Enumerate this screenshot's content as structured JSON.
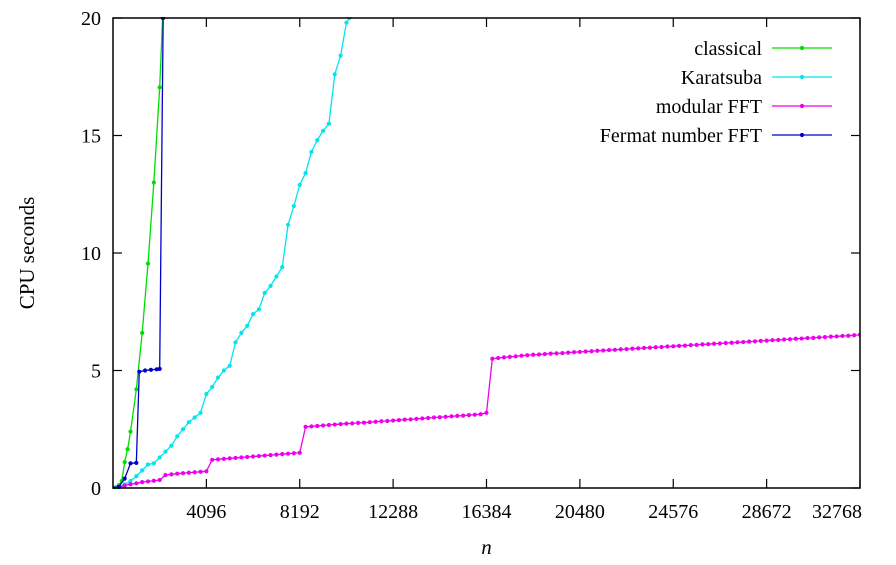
{
  "chart_data": {
    "type": "line",
    "title": "",
    "xlabel": "n",
    "ylabel": "CPU seconds",
    "xlim": [
      0,
      32768
    ],
    "ylim": [
      0,
      20
    ],
    "x_ticks": [
      4096,
      8192,
      12288,
      16384,
      20480,
      24576,
      28672,
      32768
    ],
    "x_tick_labels": [
      "4096",
      "8192",
      "12288",
      "16384",
      "20480",
      "24576",
      "28672",
      "32768"
    ],
    "y_ticks": [
      0,
      5,
      10,
      15,
      20
    ],
    "y_tick_labels": [
      "0",
      "5",
      "10",
      "15",
      "20"
    ],
    "grid": false,
    "legend_position": "top-right",
    "series": [
      {
        "name": "classical",
        "color": "#00dd00",
        "points": [
          [
            0,
            0
          ],
          [
            128,
            0.03
          ],
          [
            256,
            0.12
          ],
          [
            384,
            0.3
          ],
          [
            512,
            1.1
          ],
          [
            640,
            1.65
          ],
          [
            768,
            2.4
          ],
          [
            1024,
            4.2
          ],
          [
            1280,
            6.6
          ],
          [
            1536,
            9.55
          ],
          [
            1792,
            13.0
          ],
          [
            2048,
            17.05
          ],
          [
            2176,
            20.0
          ]
        ]
      },
      {
        "name": "Karatsuba",
        "color": "#00e5ee",
        "points": [
          [
            0,
            0
          ],
          [
            256,
            0.05
          ],
          [
            512,
            0.15
          ],
          [
            768,
            0.3
          ],
          [
            1024,
            0.5
          ],
          [
            1280,
            0.75
          ],
          [
            1536,
            1.0
          ],
          [
            1792,
            1.05
          ],
          [
            2048,
            1.3
          ],
          [
            2304,
            1.55
          ],
          [
            2560,
            1.8
          ],
          [
            2816,
            2.2
          ],
          [
            3072,
            2.5
          ],
          [
            3328,
            2.8
          ],
          [
            3584,
            3.0
          ],
          [
            3840,
            3.2
          ],
          [
            4096,
            4.0
          ],
          [
            4352,
            4.3
          ],
          [
            4608,
            4.7
          ],
          [
            4864,
            5.0
          ],
          [
            5120,
            5.2
          ],
          [
            5376,
            6.2
          ],
          [
            5632,
            6.6
          ],
          [
            5888,
            6.9
          ],
          [
            6144,
            7.4
          ],
          [
            6400,
            7.6
          ],
          [
            6656,
            8.3
          ],
          [
            6912,
            8.6
          ],
          [
            7168,
            9.0
          ],
          [
            7424,
            9.4
          ],
          [
            7680,
            11.2
          ],
          [
            7936,
            12.0
          ],
          [
            8192,
            12.9
          ],
          [
            8448,
            13.4
          ],
          [
            8704,
            14.3
          ],
          [
            8960,
            14.8
          ],
          [
            9216,
            15.2
          ],
          [
            9472,
            15.5
          ],
          [
            9728,
            17.6
          ],
          [
            9984,
            18.4
          ],
          [
            10240,
            19.8
          ],
          [
            10368,
            20.0
          ]
        ]
      },
      {
        "name": "modular FFT",
        "color": "#ee00ee",
        "points": [
          [
            0,
            0
          ],
          [
            256,
            0.04
          ],
          [
            512,
            0.1
          ],
          [
            768,
            0.16
          ],
          [
            1024,
            0.2
          ],
          [
            1280,
            0.25
          ],
          [
            1536,
            0.28
          ],
          [
            1792,
            0.31
          ],
          [
            2048,
            0.34
          ],
          [
            2304,
            0.55
          ],
          [
            2560,
            0.58
          ],
          [
            2816,
            0.61
          ],
          [
            3072,
            0.63
          ],
          [
            3328,
            0.65
          ],
          [
            3584,
            0.67
          ],
          [
            3840,
            0.69
          ],
          [
            4096,
            0.71
          ],
          [
            4352,
            1.2
          ],
          [
            4608,
            1.22
          ],
          [
            4864,
            1.24
          ],
          [
            5120,
            1.26
          ],
          [
            5376,
            1.28
          ],
          [
            5632,
            1.3
          ],
          [
            5888,
            1.32
          ],
          [
            6144,
            1.34
          ],
          [
            6400,
            1.36
          ],
          [
            6656,
            1.38
          ],
          [
            6912,
            1.4
          ],
          [
            7168,
            1.42
          ],
          [
            7424,
            1.44
          ],
          [
            7680,
            1.46
          ],
          [
            7936,
            1.48
          ],
          [
            8192,
            1.5
          ],
          [
            8448,
            2.6
          ],
          [
            8704,
            2.62
          ],
          [
            8960,
            2.64
          ],
          [
            9216,
            2.66
          ],
          [
            9472,
            2.68
          ],
          [
            9728,
            2.7
          ],
          [
            9984,
            2.72
          ],
          [
            10240,
            2.74
          ],
          [
            10496,
            2.75
          ],
          [
            10752,
            2.77
          ],
          [
            11008,
            2.78
          ],
          [
            11264,
            2.8
          ],
          [
            11520,
            2.82
          ],
          [
            11776,
            2.84
          ],
          [
            12032,
            2.85
          ],
          [
            12288,
            2.87
          ],
          [
            12544,
            2.89
          ],
          [
            12800,
            2.91
          ],
          [
            13056,
            2.92
          ],
          [
            13312,
            2.94
          ],
          [
            13568,
            2.96
          ],
          [
            13824,
            2.98
          ],
          [
            14080,
            3.0
          ],
          [
            14336,
            3.01
          ],
          [
            14592,
            3.03
          ],
          [
            14848,
            3.05
          ],
          [
            15104,
            3.07
          ],
          [
            15360,
            3.08
          ],
          [
            15616,
            3.1
          ],
          [
            15872,
            3.12
          ],
          [
            16128,
            3.14
          ],
          [
            16384,
            3.2
          ],
          [
            16640,
            5.5
          ],
          [
            16896,
            5.53
          ],
          [
            17152,
            5.56
          ],
          [
            17408,
            5.58
          ],
          [
            17664,
            5.6
          ],
          [
            17920,
            5.63
          ],
          [
            18176,
            5.65
          ],
          [
            18432,
            5.67
          ],
          [
            18688,
            5.68
          ],
          [
            18944,
            5.7
          ],
          [
            19200,
            5.72
          ],
          [
            19456,
            5.73
          ],
          [
            19712,
            5.74
          ],
          [
            19968,
            5.76
          ],
          [
            20224,
            5.78
          ],
          [
            20480,
            5.79
          ],
          [
            20736,
            5.81
          ],
          [
            20992,
            5.82
          ],
          [
            21248,
            5.84
          ],
          [
            21504,
            5.85
          ],
          [
            21760,
            5.87
          ],
          [
            22016,
            5.88
          ],
          [
            22272,
            5.9
          ],
          [
            22528,
            5.91
          ],
          [
            22784,
            5.93
          ],
          [
            23040,
            5.94
          ],
          [
            23296,
            5.96
          ],
          [
            23552,
            5.97
          ],
          [
            23808,
            5.99
          ],
          [
            24064,
            6.0
          ],
          [
            24320,
            6.02
          ],
          [
            24576,
            6.03
          ],
          [
            24832,
            6.05
          ],
          [
            25088,
            6.06
          ],
          [
            25344,
            6.08
          ],
          [
            25600,
            6.09
          ],
          [
            25856,
            6.11
          ],
          [
            26112,
            6.12
          ],
          [
            26368,
            6.14
          ],
          [
            26624,
            6.15
          ],
          [
            26880,
            6.17
          ],
          [
            27136,
            6.18
          ],
          [
            27392,
            6.2
          ],
          [
            27648,
            6.21
          ],
          [
            27904,
            6.23
          ],
          [
            28160,
            6.24
          ],
          [
            28416,
            6.26
          ],
          [
            28672,
            6.27
          ],
          [
            28928,
            6.29
          ],
          [
            29184,
            6.3
          ],
          [
            29440,
            6.32
          ],
          [
            29696,
            6.33
          ],
          [
            29952,
            6.35
          ],
          [
            30208,
            6.36
          ],
          [
            30464,
            6.38
          ],
          [
            30720,
            6.39
          ],
          [
            30976,
            6.41
          ],
          [
            31232,
            6.42
          ],
          [
            31488,
            6.44
          ],
          [
            31744,
            6.45
          ],
          [
            32000,
            6.47
          ],
          [
            32256,
            6.48
          ],
          [
            32512,
            6.5
          ],
          [
            32768,
            6.52
          ]
        ]
      },
      {
        "name": "Fermat number FFT",
        "color": "#0000cc",
        "points": [
          [
            0,
            0
          ],
          [
            256,
            0.05
          ],
          [
            512,
            0.4
          ],
          [
            768,
            1.05
          ],
          [
            1024,
            1.07
          ],
          [
            1152,
            4.95
          ],
          [
            1408,
            5.0
          ],
          [
            1664,
            5.03
          ],
          [
            1920,
            5.05
          ],
          [
            2048,
            5.07
          ],
          [
            2200,
            20.0
          ]
        ]
      }
    ]
  }
}
